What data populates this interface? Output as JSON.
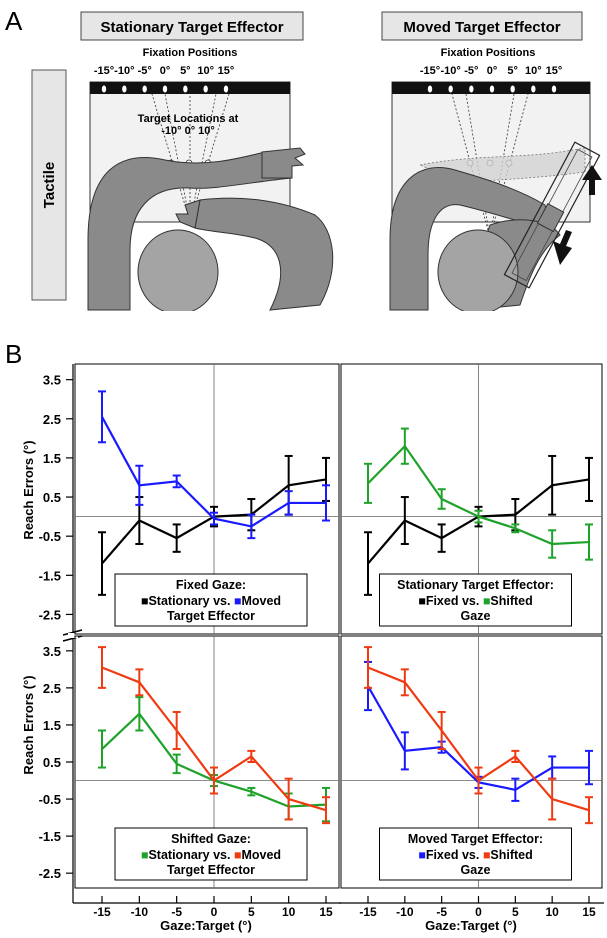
{
  "panel_labels": {
    "a": "A",
    "b": "B"
  },
  "panel_a": {
    "side_label": "Tactile",
    "left": {
      "title": "Stationary Target Effector",
      "fixation_title": "Fixation Positions",
      "fixation_ticks": [
        "-15°",
        "-10°",
        "-5°",
        "0°",
        "5°",
        "10°",
        "15°"
      ],
      "target_title_line1": "Target Locations at",
      "target_title_line2": "-10° 0° 10°"
    },
    "right": {
      "title": "Moved Target Effector",
      "fixation_title": "Fixation Positions",
      "fixation_ticks": [
        "-15°",
        "-10°",
        "-5°",
        "0°",
        "5°",
        "10°",
        "15°"
      ]
    }
  },
  "colors": {
    "stationary_fixed": "#000000",
    "moved_fixed": "#1a1aff",
    "stationary_shifted": "#1fa22a",
    "moved_shifted": "#f03a12",
    "arm": "#8c8c8c",
    "head": "#a6a6a6"
  },
  "y_axis_label": "Reach Errors (°)",
  "x_axis_label": "Gaze:Target (°)",
  "chart_data": [
    {
      "type": "line",
      "id": "top-left",
      "x": [
        -15,
        -10,
        -5,
        0,
        5,
        10,
        15
      ],
      "xticks": [
        "-15",
        "-10",
        "-5",
        "0",
        "5",
        "10",
        "15"
      ],
      "ylim": [
        -3.0,
        3.9
      ],
      "yticks": [
        "3.5",
        "2.5",
        "1.5",
        "0.5",
        "-0.5",
        "-1.5",
        "-2.5"
      ],
      "legend": {
        "title": "Fixed Gaze:",
        "line2": "Target Effector",
        "vs": "vs.",
        "position": "bottom-center"
      },
      "series": [
        {
          "name": "Stationary",
          "color_key": "stationary_fixed",
          "values": [
            -1.2,
            -0.1,
            -0.55,
            0.0,
            0.05,
            0.8,
            0.95
          ],
          "errors": [
            0.8,
            0.6,
            0.35,
            0.25,
            0.4,
            0.75,
            0.55
          ]
        },
        {
          "name": "Moved",
          "color_key": "moved_fixed",
          "values": [
            2.55,
            0.8,
            0.9,
            -0.05,
            -0.25,
            0.35,
            0.35
          ],
          "errors": [
            0.65,
            0.5,
            0.15,
            0.15,
            0.3,
            0.3,
            0.45
          ]
        }
      ]
    },
    {
      "type": "line",
      "id": "top-right",
      "x": [
        -15,
        -10,
        -5,
        0,
        5,
        10,
        15
      ],
      "ylim": [
        -3.0,
        3.9
      ],
      "legend": {
        "title": "Stationary Target Effector:",
        "line2": "Gaze",
        "vs": "vs.",
        "position": "bottom-center"
      },
      "series": [
        {
          "name": "Fixed",
          "color_key": "stationary_fixed",
          "values": [
            -1.2,
            -0.1,
            -0.55,
            0.0,
            0.05,
            0.8,
            0.95
          ],
          "errors": [
            0.8,
            0.6,
            0.35,
            0.25,
            0.4,
            0.75,
            0.55
          ]
        },
        {
          "name": "Shifted",
          "color_key": "stationary_shifted",
          "values": [
            0.85,
            1.8,
            0.45,
            0.0,
            -0.3,
            -0.7,
            -0.65
          ],
          "errors": [
            0.5,
            0.45,
            0.25,
            0.15,
            0.1,
            0.35,
            0.45
          ]
        }
      ]
    },
    {
      "type": "line",
      "id": "bottom-left",
      "x": [
        -15,
        -10,
        -5,
        0,
        5,
        10,
        15
      ],
      "xticks": [
        "-15",
        "-10",
        "-5",
        "0",
        "5",
        "10",
        "15"
      ],
      "ylim": [
        -2.9,
        3.9
      ],
      "yticks": [
        "3.5",
        "2.5",
        "1.5",
        "0.5",
        "-0.5",
        "-1.5",
        "-2.5"
      ],
      "legend": {
        "title": "Shifted Gaze:",
        "line2": "Target Effector",
        "vs": "vs.",
        "position": "bottom-center"
      },
      "series": [
        {
          "name": "Stationary",
          "color_key": "stationary_shifted",
          "values": [
            0.85,
            1.8,
            0.45,
            0.0,
            -0.3,
            -0.7,
            -0.65
          ],
          "errors": [
            0.5,
            0.45,
            0.25,
            0.15,
            0.1,
            0.35,
            0.45
          ]
        },
        {
          "name": "Moved",
          "color_key": "moved_shifted",
          "values": [
            3.05,
            2.65,
            1.35,
            0.0,
            0.65,
            -0.5,
            -0.8
          ],
          "errors": [
            0.55,
            0.35,
            0.5,
            0.35,
            0.15,
            0.55,
            0.35
          ]
        }
      ]
    },
    {
      "type": "line",
      "id": "bottom-right",
      "x": [
        -15,
        -10,
        -5,
        0,
        5,
        10,
        15
      ],
      "xticks": [
        "-15",
        "-10",
        "-5",
        "0",
        "5",
        "10",
        "15"
      ],
      "ylim": [
        -2.9,
        3.9
      ],
      "legend": {
        "title": "Moved Target Effector:",
        "line2": "Gaze",
        "vs": "vs.",
        "position": "bottom-center"
      },
      "series": [
        {
          "name": "Fixed",
          "color_key": "moved_fixed",
          "values": [
            2.55,
            0.8,
            0.9,
            -0.05,
            -0.25,
            0.35,
            0.35
          ],
          "errors": [
            0.65,
            0.5,
            0.15,
            0.15,
            0.3,
            0.3,
            0.45
          ]
        },
        {
          "name": "Shifted",
          "color_key": "moved_shifted",
          "values": [
            3.05,
            2.65,
            1.35,
            0.0,
            0.65,
            -0.5,
            -0.8
          ],
          "errors": [
            0.55,
            0.35,
            0.5,
            0.35,
            0.15,
            0.55,
            0.35
          ]
        }
      ]
    }
  ]
}
